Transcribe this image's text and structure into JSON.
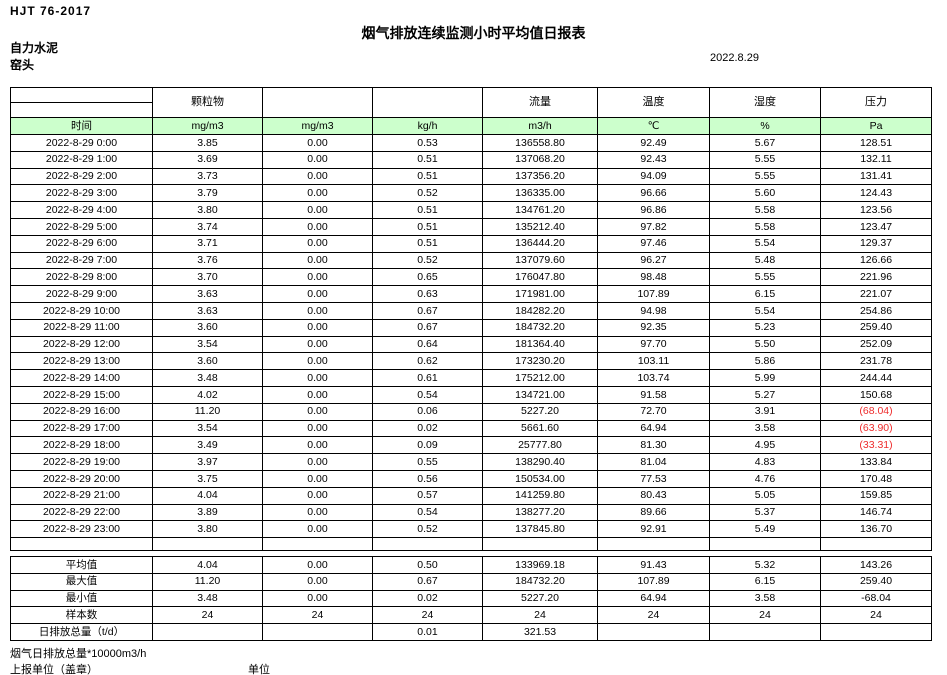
{
  "header": {
    "standard": "HJT  76-2017",
    "title": "烟气排放连续监测小时平均值日报表",
    "company": "自力水泥",
    "point": "窑头",
    "date": "2022.8.29"
  },
  "table": {
    "time_label": "时间",
    "columns": [
      {
        "group": "颗粒物",
        "unit": "mg/m3"
      },
      {
        "group": "",
        "unit": "mg/m3"
      },
      {
        "group": "",
        "unit": "kg/h"
      },
      {
        "group": "流量",
        "unit": "m3/h"
      },
      {
        "group": "温度",
        "unit": "℃"
      },
      {
        "group": "湿度",
        "unit": "%"
      },
      {
        "group": "压力",
        "unit": "Pa"
      }
    ],
    "rows": [
      {
        "time": "2022-8-29 0:00",
        "values": [
          "3.85",
          "0.00",
          "0.53",
          "136558.80",
          "92.49",
          "5.67",
          "128.51"
        ]
      },
      {
        "time": "2022-8-29 1:00",
        "values": [
          "3.69",
          "0.00",
          "0.51",
          "137068.20",
          "92.43",
          "5.55",
          "132.11"
        ]
      },
      {
        "time": "2022-8-29 2:00",
        "values": [
          "3.73",
          "0.00",
          "0.51",
          "137356.20",
          "94.09",
          "5.55",
          "131.41"
        ]
      },
      {
        "time": "2022-8-29 3:00",
        "values": [
          "3.79",
          "0.00",
          "0.52",
          "136335.00",
          "96.66",
          "5.60",
          "124.43"
        ]
      },
      {
        "time": "2022-8-29 4:00",
        "values": [
          "3.80",
          "0.00",
          "0.51",
          "134761.20",
          "96.86",
          "5.58",
          "123.56"
        ]
      },
      {
        "time": "2022-8-29 5:00",
        "values": [
          "3.74",
          "0.00",
          "0.51",
          "135212.40",
          "97.82",
          "5.58",
          "123.47"
        ]
      },
      {
        "time": "2022-8-29 6:00",
        "values": [
          "3.71",
          "0.00",
          "0.51",
          "136444.20",
          "97.46",
          "5.54",
          "129.37"
        ]
      },
      {
        "time": "2022-8-29 7:00",
        "values": [
          "3.76",
          "0.00",
          "0.52",
          "137079.60",
          "96.27",
          "5.48",
          "126.66"
        ]
      },
      {
        "time": "2022-8-29 8:00",
        "values": [
          "3.70",
          "0.00",
          "0.65",
          "176047.80",
          "98.48",
          "5.55",
          "221.96"
        ]
      },
      {
        "time": "2022-8-29 9:00",
        "values": [
          "3.63",
          "0.00",
          "0.63",
          "171981.00",
          "107.89",
          "6.15",
          "221.07"
        ]
      },
      {
        "time": "2022-8-29 10:00",
        "values": [
          "3.63",
          "0.00",
          "0.67",
          "184282.20",
          "94.98",
          "5.54",
          "254.86"
        ]
      },
      {
        "time": "2022-8-29 11:00",
        "values": [
          "3.60",
          "0.00",
          "0.67",
          "184732.20",
          "92.35",
          "5.23",
          "259.40"
        ]
      },
      {
        "time": "2022-8-29 12:00",
        "values": [
          "3.54",
          "0.00",
          "0.64",
          "181364.40",
          "97.70",
          "5.50",
          "252.09"
        ]
      },
      {
        "time": "2022-8-29 13:00",
        "values": [
          "3.60",
          "0.00",
          "0.62",
          "173230.20",
          "103.11",
          "5.86",
          "231.78"
        ]
      },
      {
        "time": "2022-8-29 14:00",
        "values": [
          "3.48",
          "0.00",
          "0.61",
          "175212.00",
          "103.74",
          "5.99",
          "244.44"
        ]
      },
      {
        "time": "2022-8-29 15:00",
        "values": [
          "4.02",
          "0.00",
          "0.54",
          "134721.00",
          "91.58",
          "5.27",
          "150.68"
        ]
      },
      {
        "time": "2022-8-29 16:00",
        "values": [
          "11.20",
          "0.00",
          "0.06",
          "5227.20",
          "72.70",
          "3.91",
          "(68.04)"
        ]
      },
      {
        "time": "2022-8-29 17:00",
        "values": [
          "3.54",
          "0.00",
          "0.02",
          "5661.60",
          "64.94",
          "3.58",
          "(63.90)"
        ]
      },
      {
        "time": "2022-8-29 18:00",
        "values": [
          "3.49",
          "0.00",
          "0.09",
          "25777.80",
          "81.30",
          "4.95",
          "(33.31)"
        ]
      },
      {
        "time": "2022-8-29 19:00",
        "values": [
          "3.97",
          "0.00",
          "0.55",
          "138290.40",
          "81.04",
          "4.83",
          "133.84"
        ]
      },
      {
        "time": "2022-8-29 20:00",
        "values": [
          "3.75",
          "0.00",
          "0.56",
          "150534.00",
          "77.53",
          "4.76",
          "170.48"
        ]
      },
      {
        "time": "2022-8-29 21:00",
        "values": [
          "4.04",
          "0.00",
          "0.57",
          "141259.80",
          "80.43",
          "5.05",
          "159.85"
        ]
      },
      {
        "time": "2022-8-29 22:00",
        "values": [
          "3.89",
          "0.00",
          "0.54",
          "138277.20",
          "89.66",
          "5.37",
          "146.74"
        ]
      },
      {
        "time": "2022-8-29 23:00",
        "values": [
          "3.80",
          "0.00",
          "0.52",
          "137845.80",
          "92.91",
          "5.49",
          "136.70"
        ]
      }
    ],
    "summary": [
      {
        "label": "平均值",
        "values": [
          "4.04",
          "0.00",
          "0.50",
          "133969.18",
          "91.43",
          "5.32",
          "143.26"
        ]
      },
      {
        "label": "最大值",
        "values": [
          "11.20",
          "0.00",
          "0.67",
          "184732.20",
          "107.89",
          "6.15",
          "259.40"
        ]
      },
      {
        "label": "最小值",
        "values": [
          "3.48",
          "0.00",
          "0.02",
          "5227.20",
          "64.94",
          "3.58",
          "-68.04"
        ]
      },
      {
        "label": "样本数",
        "values": [
          "24",
          "24",
          "24",
          "24",
          "24",
          "24",
          "24"
        ]
      },
      {
        "label": "日排放总量（t/d）",
        "values": [
          "",
          "",
          "0.01",
          "321.53",
          "",
          "",
          ""
        ]
      }
    ]
  },
  "footer": {
    "note": "烟气日排放总量*10000m3/h",
    "stamp_label": "上报单位（盖章）",
    "unit_label": "单位"
  },
  "colors": {
    "header_green": "#CCFFCC",
    "negative_red": "#EE2C2C"
  }
}
